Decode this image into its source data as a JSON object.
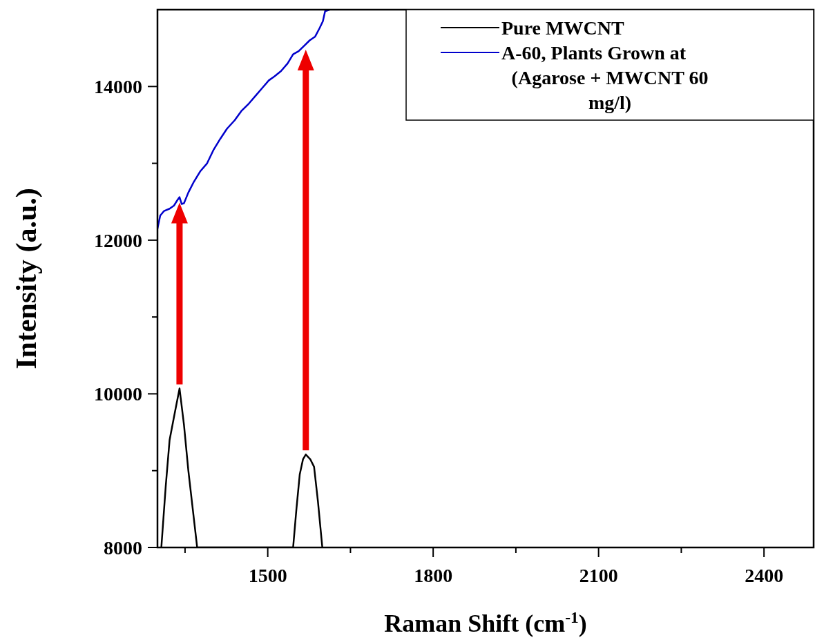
{
  "chart_data": {
    "type": "line",
    "xlabel": "Raman Shift (cm$^{-1}$)",
    "ylabel": "Intensity (a.u.)",
    "xlim": [
      1300,
      2490
    ],
    "xticks": [
      {
        "value": 1350,
        "label": null
      },
      1500,
      {
        "value": 1650,
        "label": null
      },
      1800,
      {
        "value": 1950,
        "label": null
      },
      2100,
      {
        "value": 2250,
        "label": null
      },
      2400
    ],
    "ylim": [
      8000,
      15000
    ],
    "yticks": [
      8000,
      {
        "value": 9000,
        "label": null
      },
      10000,
      {
        "value": 11000,
        "label": null
      },
      12000,
      {
        "value": 13000,
        "label": null
      },
      14000
    ],
    "legend": "top right",
    "grid": false,
    "series": [
      {
        "name": "Pure MWCNT",
        "color": "#000000",
        "x": [
          1307,
          1315,
          1322,
          1330,
          1340,
          1348,
          1356,
          1364,
          1372,
          1546,
          1552,
          1558,
          1564,
          1569,
          1577,
          1584,
          1591,
          1599
        ],
        "values": [
          8000,
          8800,
          9400,
          9700,
          10070,
          9600,
          9000,
          8500,
          8000,
          8000,
          8500,
          8950,
          9150,
          9210,
          9150,
          9050,
          8600,
          8000
        ]
      },
      {
        "name": "A-60, Plants Grown at (Agarose + MWCNT 60 mg/l)",
        "color": "#0000cc",
        "x": [
          1300,
          1305,
          1312,
          1322,
          1330,
          1336,
          1340,
          1344,
          1348,
          1356,
          1366,
          1378,
          1390,
          1402,
          1414,
          1426,
          1440,
          1452,
          1466,
          1478,
          1490,
          1502,
          1512,
          1524,
          1536,
          1546,
          1556,
          1566,
          1576,
          1586,
          1594,
          1600,
          1604,
          1612
        ],
        "values": [
          12150,
          12320,
          12380,
          12410,
          12450,
          12520,
          12560,
          12470,
          12480,
          12620,
          12760,
          12900,
          13000,
          13180,
          13320,
          13450,
          13560,
          13680,
          13780,
          13880,
          13980,
          14080,
          14130,
          14200,
          14300,
          14420,
          14460,
          14530,
          14600,
          14650,
          14760,
          14850,
          14980,
          15000
        ]
      }
    ]
  }
}
